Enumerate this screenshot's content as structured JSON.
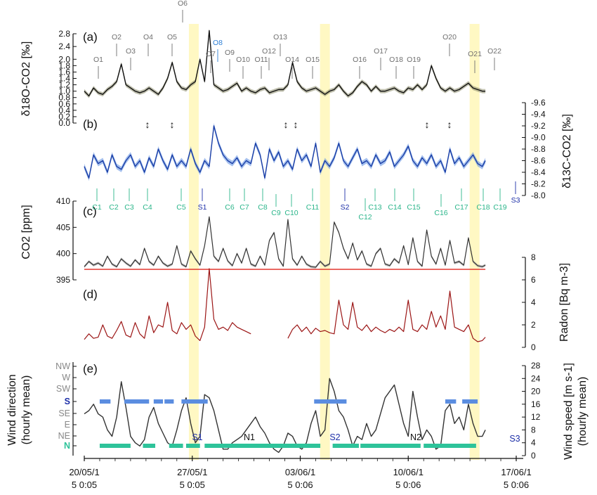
{
  "chart_data": [
    {
      "panel": "(a)",
      "type": "line",
      "ylabel": "δ18O-CO2 [‰]",
      "ylim": [
        0.0,
        2.8
      ],
      "yticks": [
        "0.0",
        "0.2",
        "0.4",
        "0.6",
        "0.8",
        "1.0",
        "1.2",
        "1.4",
        "1.6",
        "1.8",
        "2.0",
        "2.4",
        "2.8"
      ],
      "x_days": [
        0,
        0.3,
        0.6,
        0.9,
        1.2,
        1.5,
        1.8,
        2.1,
        2.4,
        2.7,
        3.0,
        3.3,
        3.6,
        3.9,
        4.2,
        4.5,
        4.8,
        5.1,
        5.4,
        5.7,
        6.0,
        6.3,
        6.6,
        6.9,
        7.2,
        7.5,
        7.8,
        8.1,
        8.4,
        8.7,
        9.0,
        9.3,
        9.6,
        9.9,
        10.2,
        10.5,
        10.8,
        11.1,
        11.4,
        11.7,
        12.0,
        12.3,
        12.6,
        12.9,
        13.2,
        13.5,
        13.8,
        14.1,
        14.4,
        14.7,
        15.0,
        15.3,
        15.6,
        15.9,
        16.2,
        16.5,
        16.8,
        17.1,
        17.4,
        17.7,
        18.0,
        18.3,
        18.6,
        18.9,
        19.2,
        19.5,
        19.8,
        20.1,
        20.4,
        20.7,
        21.0,
        21.3,
        21.6,
        21.9,
        22.2,
        22.5,
        22.8,
        23.1,
        23.4,
        23.7,
        24.0,
        24.3,
        24.6,
        24.9,
        25.2,
        25.5,
        25.8,
        26.0
      ],
      "series": [
        {
          "values": [
            1.0,
            0.85,
            1.1,
            0.95,
            0.9,
            1.05,
            1.15,
            1.3,
            1.85,
            1.2,
            1.1,
            1.0,
            0.95,
            1.0,
            1.1,
            1.0,
            0.9,
            1.1,
            1.4,
            1.9,
            1.3,
            1.1,
            1.05,
            1.2,
            1.3,
            2.0,
            1.3,
            2.9,
            1.2,
            1.1,
            1.0,
            1.05,
            1.15,
            1.25,
            1.0,
            1.1,
            1.0,
            0.95,
            1.05,
            1.1,
            0.95,
            1.0,
            1.05,
            1.05,
            1.2,
            1.9,
            1.3,
            1.1,
            1.0,
            1.05,
            1.1,
            1.0,
            0.9,
            1.0,
            1.05,
            1.2,
            1.0,
            0.85,
            0.95,
            1.15,
            1.3,
            1.2,
            1.0,
            1.15,
            1.0,
            1.0,
            1.05,
            1.1,
            1.0,
            0.95,
            1.1,
            1.05,
            1.2,
            1.05,
            1.2,
            1.8,
            1.4,
            1.1,
            1.0,
            1.1,
            1.0,
            1.05,
            1.15,
            1.25,
            1.1,
            1.05,
            1.0,
            1.0
          ]
        }
      ],
      "annotations": [
        "O1",
        "O2",
        "O3",
        "O4",
        "O5",
        "O6",
        "O7",
        "O8",
        "O9",
        "O10",
        "O11",
        "O12",
        "O13",
        "O14",
        "O15",
        "O16",
        "O17",
        "O18",
        "O19",
        "O20",
        "O21",
        "O22"
      ]
    },
    {
      "panel": "(b)",
      "type": "line",
      "ylabel": "δ13C-CO2 [‰]",
      "ylim": [
        -8.0,
        -9.6
      ],
      "yticks": [
        "-9.6",
        "-9.4",
        "-9.2",
        "-9.0",
        "-8.8",
        "-8.6",
        "-8.4",
        "-8.2",
        "-8.0"
      ],
      "x_days": [
        0,
        0.3,
        0.6,
        0.9,
        1.2,
        1.5,
        1.8,
        2.1,
        2.4,
        2.7,
        3.0,
        3.3,
        3.6,
        3.9,
        4.2,
        4.5,
        4.8,
        5.1,
        5.4,
        5.7,
        6.0,
        6.3,
        6.6,
        6.9,
        7.2,
        7.5,
        7.8,
        8.1,
        8.4,
        8.7,
        9.0,
        9.3,
        9.6,
        9.9,
        10.2,
        10.5,
        10.8,
        11.1,
        11.4,
        11.7,
        12.0,
        12.3,
        12.6,
        12.9,
        13.2,
        13.5,
        13.8,
        14.1,
        14.4,
        14.7,
        15.0,
        15.3,
        15.6,
        15.9,
        16.2,
        16.5,
        16.8,
        17.1,
        17.4,
        17.7,
        18.0,
        18.3,
        18.6,
        18.9,
        19.2,
        19.5,
        19.8,
        20.1,
        20.4,
        20.7,
        21.0,
        21.3,
        21.6,
        21.9,
        22.2,
        22.5,
        22.8,
        23.1,
        23.4,
        23.7,
        24.0,
        24.3,
        24.6,
        24.9,
        25.2,
        25.5,
        25.8,
        26.0
      ],
      "series": [
        {
          "values": [
            -8.5,
            -8.3,
            -8.7,
            -8.55,
            -8.6,
            -8.4,
            -8.7,
            -8.5,
            -8.45,
            -8.6,
            -8.7,
            -8.5,
            -8.6,
            -8.4,
            -8.65,
            -8.5,
            -8.8,
            -8.6,
            -8.45,
            -8.7,
            -8.5,
            -8.6,
            -8.5,
            -8.8,
            -8.55,
            -8.4,
            -8.6,
            -8.5,
            -9.2,
            -8.9,
            -8.7,
            -8.6,
            -8.55,
            -8.65,
            -8.5,
            -8.6,
            -8.55,
            -8.9,
            -8.7,
            -8.3,
            -8.8,
            -8.6,
            -8.75,
            -8.5,
            -8.6,
            -8.45,
            -8.8,
            -8.6,
            -8.7,
            -8.5,
            -8.9,
            -8.4,
            -8.6,
            -8.5,
            -8.65,
            -8.9,
            -8.6,
            -8.5,
            -8.65,
            -8.8,
            -8.55,
            -8.6,
            -8.5,
            -8.7,
            -8.55,
            -8.6,
            -8.75,
            -8.5,
            -8.6,
            -8.7,
            -8.85,
            -8.6,
            -8.5,
            -8.65,
            -8.55,
            -8.7,
            -8.5,
            -8.6,
            -8.4,
            -8.8,
            -8.55,
            -8.65,
            -8.5,
            -8.6,
            -8.7,
            -8.55,
            -8.5,
            -8.6
          ]
        }
      ],
      "annotations": [
        "C1",
        "C2",
        "C3",
        "C4",
        "C5",
        "S1",
        "C6",
        "C7",
        "C8",
        "C9",
        "C10",
        "C11",
        "S2",
        "C12",
        "C13",
        "C14",
        "C15",
        "C16",
        "C17",
        "C18",
        "C19",
        "S3"
      ]
    },
    {
      "panel": "(c)",
      "type": "line",
      "ylabel": "CO2 [ppm]",
      "ylim": [
        395,
        410
      ],
      "yticks": [
        "395",
        "400",
        "405",
        "410"
      ],
      "x_days": [
        0,
        0.3,
        0.6,
        0.9,
        1.2,
        1.5,
        1.8,
        2.1,
        2.4,
        2.7,
        3.0,
        3.3,
        3.6,
        3.9,
        4.2,
        4.5,
        4.8,
        5.1,
        5.4,
        5.7,
        6.0,
        6.3,
        6.6,
        6.9,
        7.2,
        7.5,
        7.8,
        8.1,
        8.4,
        8.7,
        9.0,
        9.3,
        9.6,
        9.9,
        10.2,
        10.5,
        10.8,
        11.1,
        11.4,
        11.7,
        12.0,
        12.3,
        12.6,
        12.9,
        13.2,
        13.5,
        13.8,
        14.1,
        14.4,
        14.7,
        15.0,
        15.3,
        15.6,
        15.9,
        16.2,
        16.5,
        16.8,
        17.1,
        17.4,
        17.7,
        18.0,
        18.3,
        18.6,
        18.9,
        19.2,
        19.5,
        19.8,
        20.1,
        20.4,
        20.7,
        21.0,
        21.3,
        21.6,
        21.9,
        22.2,
        22.5,
        22.8,
        23.1,
        23.4,
        23.7,
        24.0,
        24.3,
        24.6,
        24.9,
        25.2,
        25.5,
        25.8,
        26.0
      ],
      "series": [
        {
          "values": [
            397.5,
            398.5,
            397.8,
            398.2,
            397.6,
            399.5,
            398.0,
            397.5,
            399.0,
            398.2,
            397.6,
            398.8,
            397.9,
            401.0,
            398.5,
            397.8,
            399.5,
            398.2,
            397.6,
            398.0,
            401.5,
            398.0,
            397.5,
            400.5,
            399.0,
            397.8,
            401.5,
            407.0,
            399.5,
            398.5,
            401.0,
            398.6,
            397.7,
            400.0,
            398.2,
            401.0,
            398.0,
            397.6,
            399.5,
            397.8,
            402.5,
            404.0,
            399.0,
            397.6,
            406.5,
            399.0,
            397.8,
            399.5,
            398.0,
            397.5,
            397.4,
            398.5,
            397.6,
            398.0,
            406.0,
            404.0,
            401.0,
            399.0,
            402.0,
            398.8,
            400.5,
            398.0,
            397.6,
            400.0,
            401.0,
            398.0,
            397.7,
            399.0,
            398.2,
            401.5,
            397.9,
            403.0,
            398.5,
            397.6,
            404.5,
            399.5,
            398.0,
            401.0,
            397.8,
            402.5,
            398.2,
            398.5,
            397.8,
            403.0,
            398.5,
            397.7,
            397.5,
            397.8
          ]
        }
      ],
      "reference_line": 397.0
    },
    {
      "panel": "(d)",
      "type": "line",
      "ylabel": "Radon [Bq m-3]",
      "ylim": [
        0,
        8
      ],
      "yticks": [
        "0",
        "2",
        "4",
        "6",
        "8"
      ],
      "x_days": [
        0,
        0.3,
        0.6,
        0.9,
        1.2,
        1.5,
        1.8,
        2.1,
        2.4,
        2.7,
        3.0,
        3.3,
        3.6,
        3.9,
        4.2,
        4.5,
        4.8,
        5.1,
        5.4,
        5.7,
        6.0,
        6.3,
        6.6,
        6.9,
        7.2,
        7.5,
        7.8,
        8.1,
        8.4,
        8.7,
        9.0,
        9.3,
        9.6,
        9.9,
        10.2,
        10.5,
        10.8,
        11.1,
        11.4,
        11.7,
        12.0,
        12.3,
        12.6,
        12.9,
        13.2,
        13.5,
        13.8,
        14.1,
        14.4,
        14.7,
        15.0,
        15.3,
        15.6,
        15.9,
        16.2,
        16.5,
        16.8,
        17.1,
        17.4,
        17.7,
        18.0,
        18.3,
        18.6,
        18.9,
        19.2,
        19.5,
        19.8,
        20.1,
        20.4,
        20.7,
        21.0,
        21.3,
        21.6,
        21.9,
        22.2,
        22.5,
        22.8,
        23.1,
        23.4,
        23.7,
        24.0,
        24.3,
        24.6,
        24.9,
        25.2,
        25.5,
        25.8,
        26.0
      ],
      "series": [
        {
          "values": [
            0.7,
            1.2,
            0.8,
            0.9,
            2.0,
            1.0,
            0.8,
            1.5,
            2.3,
            1.1,
            0.9,
            2.2,
            1.2,
            0.8,
            2.8,
            1.3,
            2.0,
            1.8,
            4.0,
            1.5,
            1.2,
            2.2,
            1.6,
            2.0,
            1.0,
            0.6,
            1.8,
            7.0,
            2.5,
            1.6,
            1.8,
            1.5,
            2.2,
            1.8,
            1.6,
            1.4,
            1.2,
            null,
            null,
            null,
            null,
            null,
            null,
            null,
            0.8,
            1.6,
            2.0,
            1.4,
            1.8,
            1.2,
            1.7,
            1.4,
            1.5,
            1.3,
            1.2,
            4.2,
            2.0,
            1.6,
            4.0,
            1.8,
            1.5,
            2.0,
            1.4,
            1.8,
            1.5,
            1.3,
            1.6,
            1.4,
            1.8,
            1.4,
            4.2,
            1.6,
            1.4,
            2.0,
            1.6,
            3.2,
            1.8,
            2.8,
            1.6,
            5.0,
            1.8,
            1.6,
            1.4,
            2.0,
            0.8,
            0.5,
            0.6,
            0.9
          ]
        }
      ]
    },
    {
      "panel": "(e)",
      "type": "line",
      "ylabel": "Wind direction (hourly mean)",
      "y2label": "Wind speed [m s-1] (hourly mean)",
      "direction_categories": [
        "N",
        "NE",
        "E",
        "SE",
        "S",
        "SW",
        "W",
        "NW"
      ],
      "ylim": [
        0,
        28
      ],
      "yticks": [
        "0",
        "4",
        "8",
        "12",
        "16",
        "20",
        "24",
        "28"
      ],
      "x_days": [
        0,
        0.3,
        0.6,
        0.9,
        1.2,
        1.5,
        1.8,
        2.1,
        2.4,
        2.7,
        3.0,
        3.3,
        3.6,
        3.9,
        4.2,
        4.5,
        4.8,
        5.1,
        5.4,
        5.7,
        6.0,
        6.3,
        6.6,
        6.9,
        7.2,
        7.5,
        7.8,
        8.1,
        8.4,
        8.7,
        9.0,
        9.3,
        9.6,
        9.9,
        10.2,
        10.5,
        10.8,
        11.1,
        11.4,
        11.7,
        12.0,
        12.3,
        12.6,
        12.9,
        13.2,
        13.5,
        13.8,
        14.1,
        14.4,
        14.7,
        15.0,
        15.3,
        15.6,
        15.9,
        16.2,
        16.5,
        16.8,
        17.1,
        17.4,
        17.7,
        18.0,
        18.3,
        18.6,
        18.9,
        19.2,
        19.5,
        19.8,
        20.1,
        20.4,
        20.7,
        21.0,
        21.3,
        21.6,
        21.9,
        22.2,
        22.5,
        22.8,
        23.1,
        23.4,
        23.7,
        24.0,
        24.3,
        24.6,
        24.9,
        25.2,
        25.5,
        25.8,
        26.0
      ],
      "series": [
        {
          "values": [
            13,
            14,
            16,
            13,
            12,
            8,
            6,
            12,
            23,
            15,
            6,
            4,
            3,
            5,
            12,
            15,
            10,
            7,
            4,
            3,
            8,
            14,
            18,
            10,
            4,
            6,
            19,
            18,
            14,
            8,
            2,
            2,
            4,
            5,
            6,
            8,
            10,
            12,
            9,
            7,
            4,
            2,
            1,
            3,
            7,
            6,
            3,
            2,
            4,
            10,
            14,
            6,
            8,
            24,
            20,
            14,
            12,
            8,
            3,
            6,
            5,
            10,
            6,
            8,
            13,
            18,
            20,
            22,
            16,
            10,
            6,
            20,
            12,
            5,
            8,
            6,
            2,
            3,
            14,
            16,
            10,
            12,
            8,
            16,
            10,
            6,
            6,
            8
          ]
        }
      ],
      "regime_labels": [
        "S1",
        "N1",
        "S2",
        "N2",
        "S3"
      ]
    }
  ],
  "shared_x": {
    "tick_dates": [
      "20/05/15",
      "27/05/15",
      "03/06/15",
      "10/06/15",
      "17/06/15"
    ],
    "tick_labels_line1": [
      "20/05/1",
      "27/05/1",
      "03/06/1",
      "10/06/1",
      "17/06/1"
    ],
    "tick_labels_line2": [
      "5 0:05",
      "5 0:05",
      "5 0:06",
      "5 0:06",
      "5 0:06"
    ],
    "highlighted_events_days": [
      7.1,
      15.6,
      25.3
    ]
  },
  "colors": {
    "oxygen_line": "#111111",
    "oxygen_band": "#8a8a6a",
    "carbon_line": "#1a3ea6",
    "carbon_band": "#5b8de0",
    "co2_line": "#333333",
    "co2_ref": "#e0261e",
    "radon_line": "#9b1414",
    "wind_line": "#333333",
    "south_band": "#5b8de0",
    "north_band": "#2ec39a",
    "highlight": "#fff7b8",
    "oxygen_label": "#6f6f6f",
    "oxygen_special": "#2d7fd6",
    "carbon_label": "#2bb58a",
    "south_label": "#1d2fa8"
  },
  "labels": {
    "panel_a": "(a)",
    "panel_b": "(b)",
    "panel_c": "(c)",
    "panel_d": "(d)",
    "panel_e": "(e)",
    "yl_a": "δ18O-CO2 [‰]",
    "yl_b": "δ13C-CO2 [‰]",
    "yl_c": "CO2 [ppm]",
    "yl_d": "Radon [Bq m-3]",
    "yl_e1": "Wind direction",
    "yl_e2": "(hourly mean)",
    "yr_e1": "Wind speed [m s-1]",
    "yr_e2": "(hourly mean)"
  }
}
